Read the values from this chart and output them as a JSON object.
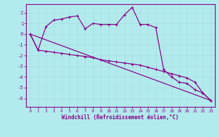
{
  "background_color": "#b2ebee",
  "grid_color": "#c8e8ea",
  "line_color": "#880088",
  "xlabel": "Windchill (Refroidissement éolien,°C)",
  "xlim": [
    -0.5,
    23.5
  ],
  "ylim": [
    -6.8,
    2.8
  ],
  "yticks": [
    -6,
    -5,
    -4,
    -3,
    -2,
    -1,
    0,
    1,
    2
  ],
  "xticks": [
    0,
    1,
    2,
    3,
    4,
    5,
    6,
    7,
    8,
    9,
    10,
    11,
    12,
    13,
    14,
    15,
    16,
    17,
    18,
    19,
    20,
    21,
    22,
    23
  ],
  "series1_x": [
    0,
    1,
    2,
    3,
    4,
    5,
    6,
    7,
    8,
    9,
    10,
    11,
    12,
    13,
    14,
    15,
    16,
    17,
    18,
    19,
    20,
    21,
    22,
    23
  ],
  "series1_y": [
    0.0,
    -1.5,
    0.7,
    1.3,
    1.4,
    1.6,
    1.7,
    0.5,
    1.0,
    0.9,
    0.9,
    0.9,
    1.8,
    2.5,
    0.9,
    0.9,
    0.6,
    -3.3,
    -4.0,
    -4.5,
    -4.6,
    -5.2,
    -5.5,
    -6.2
  ],
  "series2_x": [
    0,
    1,
    2,
    3,
    4,
    5,
    6,
    7,
    8,
    9,
    10,
    11,
    12,
    13,
    14,
    15,
    16,
    17,
    18,
    19,
    20,
    21,
    22,
    23
  ],
  "series2_y": [
    0.0,
    -1.5,
    -1.6,
    -1.7,
    -1.8,
    -1.9,
    -2.0,
    -2.1,
    -2.2,
    -2.4,
    -2.5,
    -2.6,
    -2.7,
    -2.8,
    -2.9,
    -3.1,
    -3.3,
    -3.5,
    -3.7,
    -3.9,
    -4.1,
    -4.5,
    -5.5,
    -6.2
  ],
  "series3_x": [
    0,
    23
  ],
  "series3_y": [
    0.0,
    -6.2
  ]
}
